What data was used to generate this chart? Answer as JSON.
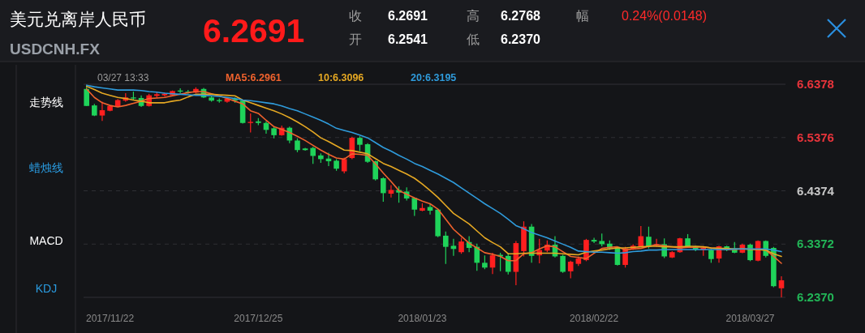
{
  "chart_data": {
    "type": "candlestick",
    "title": "美元兑离岸人民币",
    "subtitle": "USDCNH.FX",
    "categories": [
      null,
      null,
      null,
      "2017/11/22",
      null,
      null,
      null,
      null,
      null,
      null,
      null,
      null,
      null,
      null,
      null,
      null,
      null,
      null,
      null,
      null,
      null,
      null,
      "2017/12/25",
      null,
      null,
      null,
      null,
      null,
      null,
      null,
      null,
      null,
      null,
      null,
      null,
      null,
      null,
      null,
      null,
      null,
      null,
      null,
      null,
      "2018/01/23",
      null,
      null,
      null,
      null,
      null,
      null,
      null,
      null,
      null,
      null,
      null,
      null,
      null,
      null,
      null,
      null,
      null,
      null,
      null,
      null,
      null,
      "2018/02/22",
      null,
      null,
      null,
      null,
      null,
      null,
      null,
      null,
      null,
      null,
      null,
      null,
      null,
      null,
      null,
      null,
      null,
      null,
      null,
      "2018/03/27",
      null,
      null,
      null,
      null
    ],
    "ohlc": [
      [
        6.629,
        6.635,
        6.597,
        6.597
      ],
      [
        6.598,
        6.601,
        6.578,
        6.579
      ],
      [
        6.579,
        6.605,
        6.569,
        6.589
      ],
      [
        6.588,
        6.598,
        6.587,
        6.597
      ],
      [
        6.596,
        6.61,
        6.595,
        6.608
      ],
      [
        6.607,
        6.621,
        6.605,
        6.613
      ],
      [
        6.613,
        6.624,
        6.608,
        6.611
      ],
      [
        6.612,
        6.617,
        6.595,
        6.597
      ],
      [
        6.597,
        6.62,
        6.596,
        6.617
      ],
      [
        6.616,
        6.624,
        6.612,
        6.619
      ],
      [
        6.617,
        6.622,
        6.615,
        6.62
      ],
      [
        6.617,
        6.626,
        6.615,
        6.625
      ],
      [
        6.626,
        6.63,
        6.621,
        6.624
      ],
      [
        6.624,
        6.627,
        6.62,
        6.622
      ],
      [
        6.622,
        6.632,
        6.621,
        6.629
      ],
      [
        6.629,
        6.631,
        6.612,
        6.613
      ],
      [
        6.613,
        6.616,
        6.605,
        6.607
      ],
      [
        6.608,
        6.611,
        6.603,
        6.606
      ],
      [
        6.605,
        6.612,
        6.603,
        6.611
      ],
      [
        6.61,
        6.613,
        6.603,
        6.607
      ],
      [
        6.607,
        6.608,
        6.564,
        6.565
      ],
      [
        6.565,
        6.583,
        6.547,
        6.567
      ],
      [
        6.568,
        6.574,
        6.561,
        6.565
      ],
      [
        6.565,
        6.568,
        6.545,
        6.552
      ],
      [
        6.555,
        6.558,
        6.536,
        6.542
      ],
      [
        6.542,
        6.56,
        6.541,
        6.556
      ],
      [
        6.556,
        6.558,
        6.527,
        6.532
      ],
      [
        6.532,
        6.536,
        6.51,
        6.514
      ],
      [
        6.517,
        6.518,
        6.513,
        6.514
      ],
      [
        6.518,
        6.52,
        6.488,
        6.503
      ],
      [
        6.504,
        6.508,
        6.49,
        6.497
      ],
      [
        6.498,
        6.509,
        6.484,
        6.493
      ],
      [
        6.494,
        6.497,
        6.475,
        6.479
      ],
      [
        6.474,
        6.5,
        6.47,
        6.497
      ],
      [
        6.499,
        6.539,
        6.497,
        6.537
      ],
      [
        6.537,
        6.54,
        6.512,
        6.524
      ],
      [
        6.525,
        6.527,
        6.49,
        6.492
      ],
      [
        6.493,
        6.494,
        6.457,
        6.459
      ],
      [
        6.461,
        6.463,
        6.417,
        6.433
      ],
      [
        6.432,
        6.448,
        6.425,
        6.439
      ],
      [
        6.439,
        6.446,
        6.415,
        6.434
      ],
      [
        6.436,
        6.444,
        6.419,
        6.423
      ],
      [
        6.424,
        6.425,
        6.39,
        6.402
      ],
      [
        6.4,
        6.414,
        6.399,
        6.405
      ],
      [
        6.407,
        6.413,
        6.393,
        6.4
      ],
      [
        6.402,
        6.403,
        6.35,
        6.352
      ],
      [
        6.353,
        6.361,
        6.3,
        6.332
      ],
      [
        6.334,
        6.347,
        6.315,
        6.328
      ],
      [
        6.322,
        6.349,
        6.319,
        6.342
      ],
      [
        6.341,
        6.352,
        6.322,
        6.33
      ],
      [
        6.332,
        6.338,
        6.287,
        6.302
      ],
      [
        6.302,
        6.316,
        6.29,
        6.293
      ],
      [
        6.293,
        6.321,
        6.281,
        6.316
      ],
      [
        6.317,
        6.321,
        6.286,
        6.314
      ],
      [
        6.315,
        6.32,
        6.28,
        6.285
      ],
      [
        6.285,
        6.343,
        6.26,
        6.339
      ],
      [
        6.324,
        6.38,
        6.314,
        6.37
      ],
      [
        6.37,
        6.375,
        6.302,
        6.315
      ],
      [
        6.316,
        6.347,
        6.301,
        6.326
      ],
      [
        6.325,
        6.344,
        6.322,
        6.336
      ],
      [
        6.336,
        6.352,
        6.312,
        6.314
      ],
      [
        6.315,
        6.317,
        6.283,
        6.285
      ],
      [
        6.286,
        6.306,
        6.273,
        6.304
      ],
      [
        6.3,
        6.314,
        6.296,
        6.31
      ],
      [
        6.307,
        6.347,
        6.305,
        6.345
      ],
      [
        6.345,
        6.349,
        6.339,
        6.342
      ],
      [
        6.343,
        6.357,
        6.333,
        6.337
      ],
      [
        6.338,
        6.344,
        6.326,
        6.329
      ],
      [
        6.332,
        6.333,
        6.297,
        6.298
      ],
      [
        6.298,
        6.332,
        6.293,
        6.329
      ],
      [
        6.327,
        6.337,
        6.326,
        6.334
      ],
      [
        6.333,
        6.371,
        6.332,
        6.352
      ],
      [
        6.351,
        6.37,
        6.329,
        6.332
      ],
      [
        6.334,
        6.347,
        6.332,
        6.337
      ],
      [
        6.337,
        6.348,
        6.311,
        6.314
      ],
      [
        6.312,
        6.324,
        6.311,
        6.322
      ],
      [
        6.322,
        6.349,
        6.321,
        6.348
      ],
      [
        6.348,
        6.356,
        6.33,
        6.332
      ],
      [
        6.333,
        6.334,
        6.324,
        6.327
      ],
      [
        6.326,
        6.333,
        6.315,
        6.33
      ],
      [
        6.326,
        6.328,
        6.302,
        6.309
      ],
      [
        6.31,
        6.334,
        6.302,
        6.333
      ],
      [
        6.333,
        6.334,
        6.324,
        6.326
      ],
      [
        6.329,
        6.341,
        6.32,
        6.321
      ],
      [
        6.321,
        6.338,
        6.32,
        6.336
      ],
      [
        6.336,
        6.338,
        6.305,
        6.307
      ],
      [
        6.306,
        6.344,
        6.305,
        6.343
      ],
      [
        6.343,
        6.344,
        6.312,
        6.315
      ],
      [
        6.33,
        6.332,
        6.256,
        6.258
      ],
      [
        6.2541,
        6.2768,
        6.237,
        6.2691
      ]
    ],
    "series": [
      {
        "name": "MA5:6.2961",
        "type": "line",
        "color": "#f0622d",
        "values": [
          6.629,
          6.613,
          6.603,
          6.598,
          6.595,
          6.598,
          6.602,
          6.606,
          6.611,
          6.612,
          6.613,
          6.616,
          6.619,
          6.622,
          6.624,
          6.624,
          6.62,
          6.616,
          6.611,
          6.606,
          6.601,
          6.588,
          6.583,
          6.57,
          6.558,
          6.553,
          6.547,
          6.54,
          6.532,
          6.523,
          6.514,
          6.506,
          6.499,
          6.497,
          6.507,
          6.506,
          6.504,
          6.488,
          6.471,
          6.455,
          6.438,
          6.431,
          6.424,
          6.418,
          6.413,
          6.403,
          6.384,
          6.365,
          6.352,
          6.339,
          6.33,
          6.321,
          6.318,
          6.314,
          6.306,
          6.306,
          6.319,
          6.321,
          6.328,
          6.334,
          6.332,
          6.323,
          6.314,
          6.312,
          6.31,
          6.32,
          6.329,
          6.331,
          6.332,
          6.326,
          6.328,
          6.329,
          6.333,
          6.336,
          6.334,
          6.332,
          6.33,
          6.331,
          6.331,
          6.332,
          6.33,
          6.329,
          6.327,
          6.327,
          6.328,
          6.328,
          6.327,
          6.326,
          6.314,
          6.301
        ]
      },
      {
        "name": "10:6.3096",
        "type": "line",
        "color": "#e5a823",
        "values": [
          6.634,
          6.628,
          6.621,
          6.617,
          6.613,
          6.611,
          6.608,
          6.606,
          6.603,
          6.603,
          6.603,
          6.606,
          6.608,
          6.614,
          6.619,
          6.619,
          6.619,
          6.618,
          6.617,
          6.616,
          6.608,
          6.603,
          6.598,
          6.593,
          6.588,
          6.582,
          6.575,
          6.567,
          6.558,
          6.548,
          6.537,
          6.53,
          6.522,
          6.514,
          6.513,
          6.51,
          6.507,
          6.498,
          6.489,
          6.483,
          6.476,
          6.469,
          6.461,
          6.45,
          6.438,
          6.425,
          6.41,
          6.395,
          6.385,
          6.375,
          6.362,
          6.349,
          6.34,
          6.332,
          6.319,
          6.319,
          6.32,
          6.32,
          6.32,
          6.32,
          6.32,
          6.319,
          6.318,
          6.317,
          6.322,
          6.324,
          6.326,
          6.328,
          6.33,
          6.33,
          6.331,
          6.332,
          6.333,
          6.333,
          6.332,
          6.332,
          6.332,
          6.333,
          6.333,
          6.332,
          6.33,
          6.329,
          6.329,
          6.328,
          6.328,
          6.327,
          6.327,
          6.326,
          6.319,
          6.314
        ]
      },
      {
        "name": "20:6.3195",
        "type": "line",
        "color": "#2f9bdb",
        "values": [
          6.636,
          6.633,
          6.631,
          6.629,
          6.627,
          6.627,
          6.627,
          6.626,
          6.624,
          6.623,
          6.621,
          6.62,
          6.619,
          6.618,
          6.617,
          6.617,
          6.616,
          6.615,
          6.613,
          6.611,
          6.608,
          6.607,
          6.605,
          6.603,
          6.601,
          6.597,
          6.592,
          6.588,
          6.582,
          6.576,
          6.57,
          6.563,
          6.555,
          6.551,
          6.547,
          6.542,
          6.537,
          6.528,
          6.519,
          6.512,
          6.504,
          6.497,
          6.489,
          6.483,
          6.476,
          6.469,
          6.461,
          6.453,
          6.443,
          6.433,
          6.423,
          6.413,
          6.404,
          6.395,
          6.384,
          6.372,
          6.366,
          6.359,
          6.354,
          6.349,
          6.343,
          6.337,
          6.331,
          6.324,
          6.323,
          6.322,
          6.322,
          6.321,
          6.32,
          6.321,
          6.323,
          6.324,
          6.326,
          6.326,
          6.327,
          6.327,
          6.327,
          6.327,
          6.327,
          6.327,
          6.327,
          6.327,
          6.327,
          6.328,
          6.328,
          6.328,
          6.328,
          6.328,
          6.326,
          6.323
        ]
      }
    ],
    "ylim": [
      6.237,
      6.6378
    ],
    "yticks": [
      {
        "value": 6.6378,
        "label": "6.6378"
      },
      {
        "value": 6.5376,
        "label": "6.5376"
      },
      {
        "value": 6.4374,
        "label": "6.4374"
      },
      {
        "value": 6.3372,
        "label": "6.3372"
      },
      {
        "value": 6.237,
        "label": "6.2370"
      }
    ],
    "grid": "y",
    "legend": "top left",
    "annotations": [
      "6.2691",
      "收",
      "6.2691",
      "高",
      "6.2768",
      "幅",
      "0.24%(0.0148)",
      "开",
      "6.2541",
      "低",
      "6.2370",
      "03/27 13:33",
      "走势线",
      "蜡烛线",
      "MACD",
      "KDJ"
    ]
  }
}
